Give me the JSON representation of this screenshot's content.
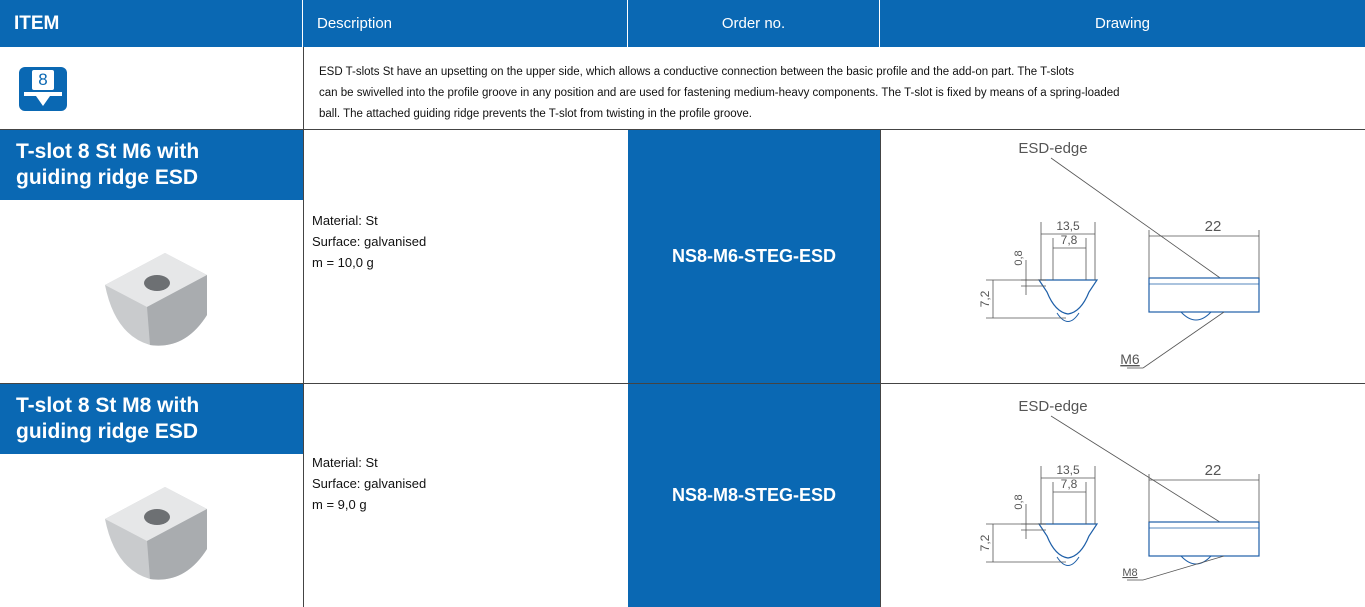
{
  "header": {
    "columns": [
      "ITEM",
      "Description",
      "Order no.",
      "Drawing"
    ]
  },
  "intro": {
    "icon_label": "8",
    "lines": [
      "ESD T-slots St have an upsetting on the upper side, which allows a conductive connection between the basic profile and the add-on part. The T-slots",
      "can be swivelled into the profile groove in any position and are used for fastening medium-heavy components. The T-slot is fixed by means of a spring-loaded",
      "ball. The attached guiding ridge prevents the T-slot from twisting in the profile groove."
    ]
  },
  "rows": [
    {
      "title": [
        "T-slot 8 St M6 with",
        "guiding ridge ESD"
      ],
      "description": [
        "Material: St",
        "Surface: galvanised",
        "m = 10,0 g"
      ],
      "order_no": "NS8-M6-STEG-ESD",
      "drawing": {
        "edge_label": "ESD-edge",
        "width_outer": "13,5",
        "width_inner": "7,8",
        "height_small": "0,8",
        "height": "7,2",
        "length": "22",
        "thread": "M6"
      }
    },
    {
      "title": [
        "T-slot 8 St M8 with",
        "guiding ridge ESD"
      ],
      "description": [
        "Material: St",
        "Surface: galvanised",
        "m = 9,0 g"
      ],
      "order_no": "NS8-M8-STEG-ESD",
      "drawing": {
        "edge_label": "ESD-edge",
        "width_outer": "13,5",
        "width_inner": "7,8",
        "height_small": "0,8",
        "height": "7,2",
        "length": "22",
        "thread": "M8"
      }
    }
  ]
}
